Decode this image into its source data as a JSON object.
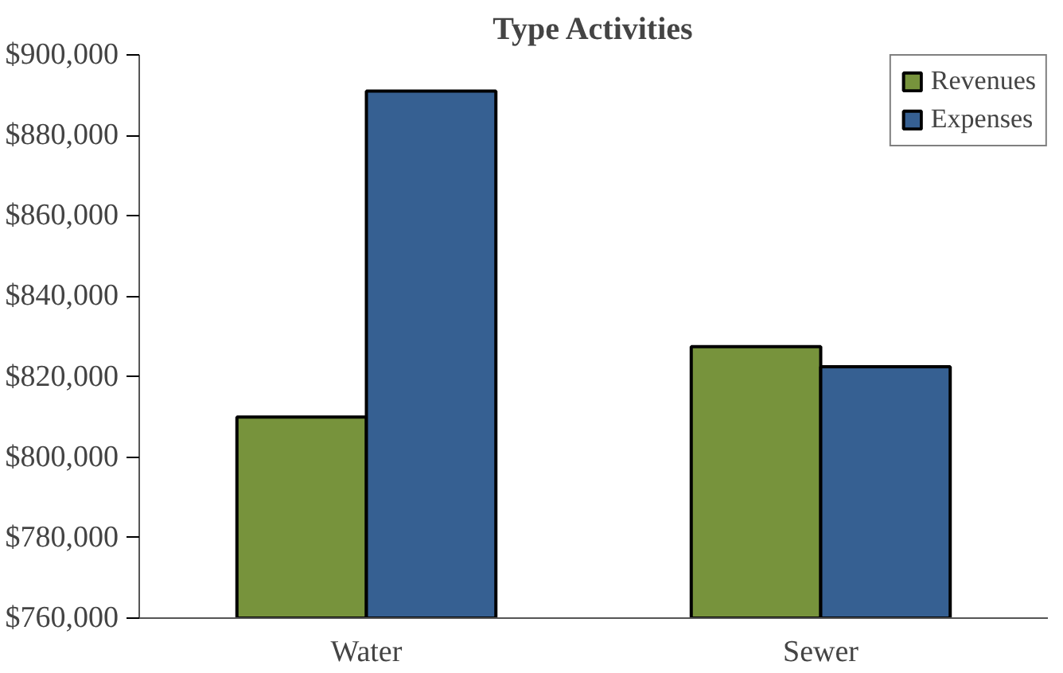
{
  "chart_data": {
    "type": "bar",
    "title": "Type Activities",
    "categories": [
      "Water",
      "Sewer"
    ],
    "series": [
      {
        "name": "Revenues",
        "color": "#77933c",
        "values": [
          810000,
          827500
        ]
      },
      {
        "name": "Expenses",
        "color": "#366092",
        "values": [
          891000,
          822500
        ]
      }
    ],
    "ylim": [
      760000,
      900000
    ],
    "yticks": [
      {
        "value": 760000,
        "label": "$760,000"
      },
      {
        "value": 780000,
        "label": "$780,000"
      },
      {
        "value": 800000,
        "label": "$800,000"
      },
      {
        "value": 820000,
        "label": "$820,000"
      },
      {
        "value": 840000,
        "label": "$840,000"
      },
      {
        "value": 860000,
        "label": "$860,000"
      },
      {
        "value": 880000,
        "label": "$880,000"
      },
      {
        "value": 900000,
        "label": "$900,000"
      }
    ],
    "grid": false,
    "legend": "top right"
  }
}
